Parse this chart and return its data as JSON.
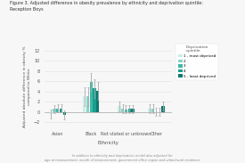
{
  "title": "Figure 3. Adjusted difference in obesity prevalence by ethnicity and deprivation quintile:\nReception Boys",
  "xlabel": "Ethnicity",
  "ylabel": "Adjusted absolute difference in obesity %\ncompared to White",
  "footnote": "In addition to ethnicity and deprivation, model also adjusted for\nage at measurement, month of measurement, government office region and urban/rural residence",
  "legend_title": "Deprivation\nquintile",
  "legend_labels": [
    "1 - most deprived",
    "2",
    "3",
    "4",
    "5 - least deprived"
  ],
  "colors": [
    "#cceee8",
    "#88d4c8",
    "#3db8a8",
    "#1a9e8e",
    "#0d7a6e"
  ],
  "categories": [
    "Asian",
    "Black",
    "Not stated or unknown",
    "Other"
  ],
  "bar_values": [
    [
      -0.4,
      0.6,
      0.7,
      0.7,
      -0.6
    ],
    [
      3.0,
      3.0,
      5.9,
      4.6,
      4.1
    ],
    [
      1.1,
      0.6,
      0.5,
      0.6,
      0.6
    ],
    [
      0.6,
      0.6,
      0.0,
      0.0,
      1.2
    ]
  ],
  "error_low": [
    [
      -1.3,
      -0.2,
      -0.1,
      -0.1,
      -1.4
    ],
    [
      1.2,
      1.2,
      4.1,
      2.8,
      2.3
    ],
    [
      0.1,
      -0.3,
      -0.3,
      -0.2,
      -0.2
    ],
    [
      -0.3,
      -0.3,
      -0.8,
      -0.8,
      0.3
    ]
  ],
  "error_high": [
    [
      0.5,
      1.4,
      1.5,
      1.5,
      0.2
    ],
    [
      4.8,
      4.8,
      7.7,
      6.4,
      5.9
    ],
    [
      2.1,
      1.5,
      1.3,
      1.4,
      1.4
    ],
    [
      1.5,
      1.5,
      0.8,
      0.8,
      2.1
    ]
  ],
  "ylim": [
    -3,
    13
  ],
  "yticks": [
    -2,
    0,
    2,
    4,
    6,
    8,
    10,
    12
  ],
  "background_color": "#f7f7f7",
  "grid_color": "#e0e0e0"
}
